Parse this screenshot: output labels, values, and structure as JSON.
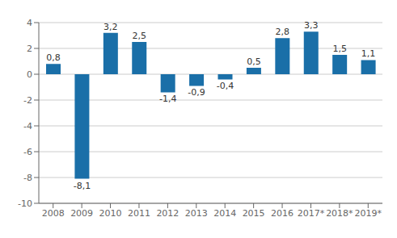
{
  "chart_data": {
    "type": "bar",
    "categories": [
      "2008",
      "2009",
      "2010",
      "2011",
      "2012",
      "2013",
      "2014",
      "2015",
      "2016",
      "2017*",
      "2018*",
      "2019*"
    ],
    "values": [
      0.8,
      -8.1,
      3.2,
      2.5,
      -1.4,
      -0.9,
      -0.4,
      0.5,
      2.8,
      3.3,
      1.5,
      1.1
    ],
    "value_labels": [
      "0,8",
      "-8,1",
      "3,2",
      "2,5",
      "-1,4",
      "-0,9",
      "-0,4",
      "0,5",
      "2,8",
      "3,3",
      "1,5",
      "1,1"
    ],
    "color": "#1a6fa8",
    "ylim": [
      -10,
      4
    ],
    "yticks": [
      -10,
      -8,
      -6,
      -4,
      -2,
      0,
      2,
      4
    ],
    "grid": true,
    "data_labels": true
  }
}
